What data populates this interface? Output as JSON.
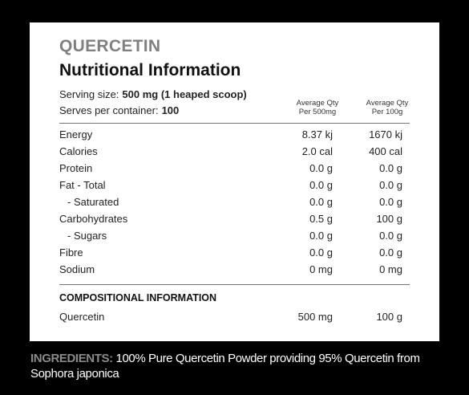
{
  "header": {
    "brand": "QUERCETIN",
    "title": "Nutritional Information"
  },
  "serving": {
    "size_label": "Serving size:",
    "size_value": "500 mg (1 heaped scoop)",
    "per_container_label": "Serves per container:",
    "per_container_value": "100"
  },
  "columns": [
    {
      "line1": "Average Qty",
      "line2": "Per 500mg"
    },
    {
      "line1": "Average Qty",
      "line2": "Per 100g"
    }
  ],
  "rows": [
    [
      "Energy",
      "8.37 kj",
      "1670 kj"
    ],
    [
      "Calories",
      "2.0 cal",
      "400 cal"
    ],
    [
      "Protein",
      "0.0 g",
      "0.0 g"
    ],
    [
      "Fat - Total",
      "0.0 g",
      "0.0 g"
    ],
    [
      "- Saturated",
      "0.0 g",
      "0.0 g"
    ],
    [
      "Carbohydrates",
      "0.5 g",
      "100 g"
    ],
    [
      "- Sugars",
      "0.0 g",
      "0.0 g"
    ],
    [
      "Fibre",
      "0.0 g",
      "0.0 g"
    ],
    [
      "Sodium",
      "0 mg",
      "0 mg"
    ]
  ],
  "compositional": {
    "title": "COMPOSITIONAL INFORMATION",
    "rows": [
      [
        "Quercetin",
        "500 mg",
        "100 g"
      ]
    ]
  },
  "ingredients": {
    "label": "INGREDIENTS:",
    "text": "100% Pure Quercetin Powder providing 95% Quercetin from Sophora japonica"
  }
}
